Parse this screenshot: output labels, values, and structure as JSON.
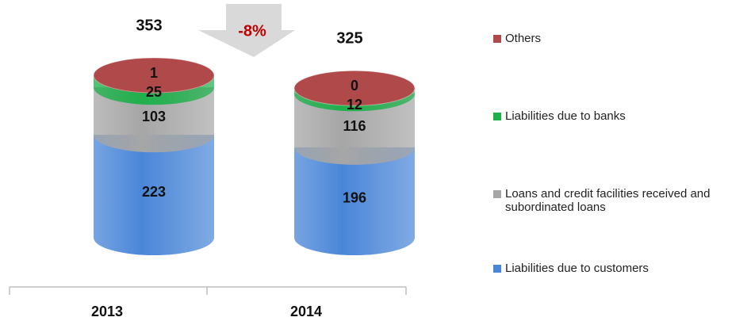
{
  "chart_data": {
    "type": "stacked-cylinder",
    "categories": [
      "2013",
      "2014"
    ],
    "series": [
      {
        "name": "Liabilities due to customers",
        "color": "#4a86d8",
        "values": [
          223,
          196
        ]
      },
      {
        "name": "Loans and credit facilities received and subordinated loans",
        "color": "#a6a6a6",
        "values": [
          103,
          116
        ]
      },
      {
        "name": "Liabilities due to banks",
        "color": "#1fb04c",
        "values": [
          25,
          12
        ]
      },
      {
        "name": "Others",
        "color": "#b04a4a",
        "values": [
          1,
          0
        ]
      }
    ],
    "totals": [
      353,
      325
    ],
    "annotation": "-8%"
  }
}
